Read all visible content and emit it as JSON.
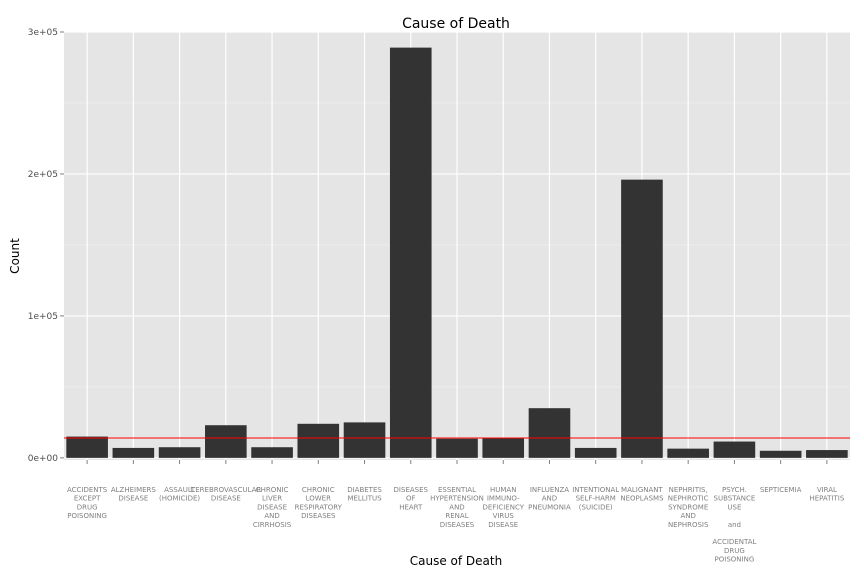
{
  "chart_data": {
    "type": "bar",
    "title": "Cause of Death",
    "xlabel": "Cause of Death",
    "ylabel": "Count",
    "ylim": [
      -1500,
      300000
    ],
    "yticks": [
      {
        "value": 0,
        "label": "0e+00"
      },
      {
        "value": 100000,
        "label": "1e+05"
      },
      {
        "value": 200000,
        "label": "2e+05"
      },
      {
        "value": 300000,
        "label": "3e+05"
      }
    ],
    "reference_line": {
      "value": 14000,
      "color": "#ff0000"
    },
    "bar_color": "#333333",
    "panel_background": "#e5e5e5",
    "grid": true,
    "categories": [
      [
        "ACCIDENTS",
        "EXCEPT",
        "DRUG",
        "POISONING"
      ],
      [
        "ALZHEIMERS",
        "DISEASE"
      ],
      [
        "ASSAULT",
        "(HOMICIDE)"
      ],
      [
        "CEREBROVASCULAR",
        "DISEASE"
      ],
      [
        "CHRONIC",
        "LIVER",
        "DISEASE",
        "AND",
        "CIRRHOSIS"
      ],
      [
        "CHRONIC",
        "LOWER",
        "RESPIRATORY",
        "DISEASES"
      ],
      [
        "DIABETES",
        "MELLITUS"
      ],
      [
        "DISEASES",
        "OF",
        "HEART"
      ],
      [
        "ESSENTIAL",
        "HYPERTENSION",
        "AND",
        "RENAL",
        "DISEASES"
      ],
      [
        "HUMAN",
        "IMMUNO-",
        "DEFICIENCY",
        "VIRUS",
        "DISEASE"
      ],
      [
        "INFLUENZA",
        "AND",
        "PNEUMONIA"
      ],
      [
        "INTENTIONAL",
        "SELF-HARM",
        "(SUICIDE)"
      ],
      [
        "MALIGNANT",
        "NEOPLASMS"
      ],
      [
        "NEPHRITIS,",
        "NEPHROTIC",
        "SYNDROME",
        "AND",
        "NEPHROSIS"
      ],
      [
        "PSYCH.",
        "SUBSTANCE",
        "USE",
        "",
        "and",
        "",
        "ACCIDENTAL",
        "DRUG",
        "POISONING"
      ],
      [
        "SEPTICEMIA"
      ],
      [
        "VIRAL",
        "HEPATITIS"
      ]
    ],
    "values": [
      15000,
      7000,
      7500,
      23000,
      7500,
      24000,
      25000,
      289000,
      13500,
      14000,
      35000,
      7000,
      196000,
      6500,
      11500,
      5000,
      5500
    ]
  }
}
